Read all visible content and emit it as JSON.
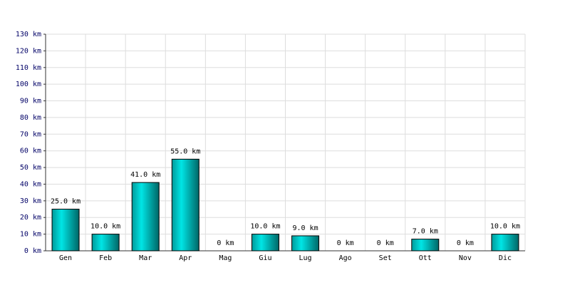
{
  "chart_data": {
    "type": "bar",
    "categories": [
      "Gen",
      "Feb",
      "Mar",
      "Apr",
      "Mag",
      "Giu",
      "Lug",
      "Ago",
      "Set",
      "Ott",
      "Nov",
      "Dic"
    ],
    "values": [
      25,
      10,
      41,
      55,
      0,
      10,
      9,
      0,
      0,
      7,
      0,
      10
    ],
    "value_labels": [
      "25.0 km",
      "10.0 km",
      "41.0 km",
      "55.0 km",
      "0 km",
      "10.0 km",
      "9.0 km",
      "0 km",
      "0 km",
      "7.0 km",
      "0 km",
      "10.0 km"
    ],
    "color": "#00e5e5",
    "ylim": [
      0,
      130
    ],
    "yticks": [
      {
        "value": 0,
        "label": "0 km"
      },
      {
        "value": 10,
        "label": "10 km"
      },
      {
        "value": 20,
        "label": "20 km"
      },
      {
        "value": 30,
        "label": "30 km"
      },
      {
        "value": 40,
        "label": "40 km"
      },
      {
        "value": 50,
        "label": "50 km"
      },
      {
        "value": 60,
        "label": "60 km"
      },
      {
        "value": 70,
        "label": "70 km"
      },
      {
        "value": 80,
        "label": "80 km"
      },
      {
        "value": 90,
        "label": "90 km"
      },
      {
        "value": 100,
        "label": "100 km"
      },
      {
        "value": 110,
        "label": "110 km"
      },
      {
        "value": 120,
        "label": "120 km"
      },
      {
        "value": 130,
        "label": "130 km"
      }
    ],
    "grid": true
  }
}
